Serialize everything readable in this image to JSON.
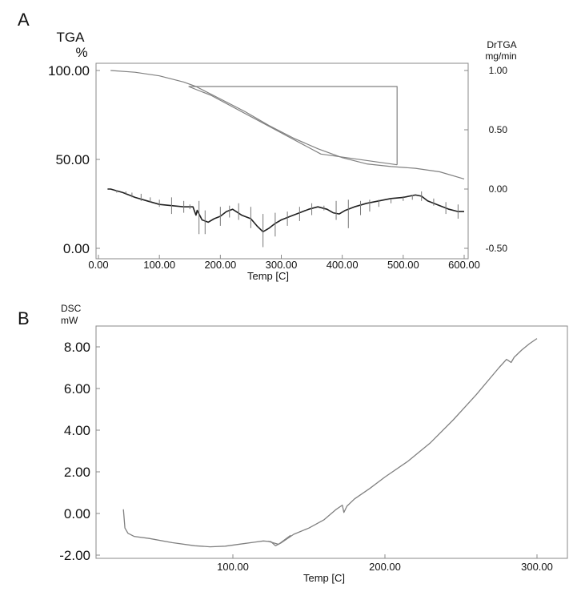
{
  "panels": [
    {
      "letter": "A"
    },
    {
      "letter": "B"
    }
  ],
  "chart_data": [
    {
      "type": "line",
      "title": "",
      "xlabel": "Temp  [C]",
      "ylabel_left": "TGA\n%",
      "ylabel_left_lines": [
        "TGA",
        "%"
      ],
      "ylabel_right_lines": [
        "DrTGA",
        "mg/min"
      ],
      "xlim": [
        0,
        600
      ],
      "ylim_left": [
        0,
        100
      ],
      "ylim_right": [
        -0.5,
        1.0
      ],
      "x_ticks": [
        "0.00",
        "100.00",
        "200.00",
        "300.00",
        "400.00",
        "500.00",
        "600.00"
      ],
      "x_tick_values": [
        0,
        100,
        200,
        300,
        400,
        500,
        600
      ],
      "y_ticks_left": [
        "100.00",
        "50.00",
        "0.00"
      ],
      "y_tick_values_left": [
        100,
        50,
        0
      ],
      "y_ticks_right": [
        "1.00",
        "0.50",
        "0.00",
        "-0.50"
      ],
      "y_tick_values_right": [
        1.0,
        0.5,
        0.0,
        -0.5
      ],
      "series": [
        {
          "axis": "left",
          "color": "#808080",
          "x": [
            20,
            60,
            100,
            140,
            160,
            200,
            240,
            280,
            320,
            360,
            400,
            440,
            480,
            520,
            560,
            600
          ],
          "y": [
            100,
            99,
            97,
            93.5,
            91,
            84,
            77,
            69,
            62,
            56,
            51,
            47.5,
            46,
            45,
            43,
            39
          ]
        },
        {
          "axis": "left",
          "color": "#808080",
          "x": [
            148,
            185,
            365,
            490
          ],
          "y": [
            91,
            86,
            53,
            47
          ]
        },
        {
          "axis": "left",
          "color": "#808080",
          "x": [
            148,
            490,
            490
          ],
          "y": [
            91,
            91,
            47
          ]
        },
        {
          "axis": "right",
          "color": "#202020",
          "x": [
            15,
            20,
            40,
            60,
            80,
            100,
            120,
            140,
            155,
            160,
            162,
            170,
            180,
            190,
            200,
            210,
            220,
            235,
            250,
            260,
            270,
            280,
            290,
            300,
            315,
            330,
            345,
            360,
            375,
            385,
            395,
            405,
            420,
            440,
            460,
            480,
            500,
            520,
            530,
            540,
            555,
            575,
            590,
            600
          ],
          "y": [
            0.0,
            0.0,
            -0.03,
            -0.07,
            -0.1,
            -0.13,
            -0.14,
            -0.15,
            -0.15,
            -0.22,
            -0.18,
            -0.26,
            -0.28,
            -0.25,
            -0.23,
            -0.19,
            -0.17,
            -0.22,
            -0.25,
            -0.31,
            -0.36,
            -0.33,
            -0.29,
            -0.26,
            -0.23,
            -0.2,
            -0.17,
            -0.15,
            -0.17,
            -0.2,
            -0.21,
            -0.18,
            -0.15,
            -0.12,
            -0.1,
            -0.08,
            -0.07,
            -0.05,
            -0.06,
            -0.1,
            -0.13,
            -0.17,
            -0.19,
            -0.19
          ]
        }
      ],
      "markers": {
        "axis": "right",
        "x": [
          30,
          45,
          55,
          70,
          85,
          100,
          120,
          140,
          150,
          165,
          175,
          200,
          215,
          230,
          250,
          270,
          290,
          310,
          330,
          350,
          370,
          390,
          410,
          430,
          445,
          460,
          480,
          500,
          515,
          530,
          550,
          570,
          590
        ],
        "y": [
          -0.02,
          -0.03,
          -0.05,
          -0.07,
          -0.09,
          -0.12,
          -0.14,
          -0.15,
          -0.15,
          -0.24,
          -0.28,
          -0.23,
          -0.19,
          -0.19,
          -0.24,
          -0.35,
          -0.3,
          -0.25,
          -0.21,
          -0.17,
          -0.16,
          -0.18,
          -0.21,
          -0.16,
          -0.14,
          -0.12,
          -0.1,
          -0.08,
          -0.07,
          -0.06,
          -0.11,
          -0.16,
          -0.19
        ],
        "h": [
          0.01,
          0.01,
          0.02,
          0.03,
          0.02,
          0.03,
          0.07,
          0.05,
          0.02,
          0.14,
          0.1,
          0.08,
          0.05,
          0.07,
          0.09,
          0.14,
          0.1,
          0.06,
          0.06,
          0.05,
          0.02,
          0.08,
          0.12,
          0.06,
          0.05,
          0.03,
          0.02,
          0.02,
          0.02,
          0.04,
          0.03,
          0.05,
          0.06
        ]
      }
    },
    {
      "type": "line",
      "title": "",
      "xlabel": "Temp  [C]",
      "ylabel_lines": [
        "DSC",
        "mW"
      ],
      "xlim": [
        10,
        320
      ],
      "ylim": [
        -2.2,
        8.8
      ],
      "x_ticks": [
        "100.00",
        "200.00",
        "300.00"
      ],
      "x_tick_values": [
        100,
        200,
        300
      ],
      "y_ticks": [
        "8.00",
        "6.00",
        "4.00",
        "2.00",
        "0.00",
        "-2.00"
      ],
      "y_tick_values": [
        8,
        6,
        4,
        2,
        0,
        -2
      ],
      "series": [
        {
          "color": "#808080",
          "x": [
            28,
            29,
            31,
            35,
            45,
            60,
            75,
            85,
            95,
            105,
            115,
            120,
            125,
            128,
            132,
            140,
            150,
            160,
            168,
            172,
            173,
            175,
            180,
            190,
            200,
            215,
            230,
            245,
            260,
            275,
            280,
            283,
            285,
            290,
            295,
            300
          ],
          "y": [
            0.2,
            -0.7,
            -0.95,
            -1.1,
            -1.2,
            -1.4,
            -1.55,
            -1.6,
            -1.57,
            -1.47,
            -1.37,
            -1.32,
            -1.35,
            -1.55,
            -1.4,
            -1.0,
            -0.7,
            -0.3,
            0.2,
            0.4,
            0.05,
            0.35,
            0.7,
            1.2,
            1.75,
            2.5,
            3.4,
            4.5,
            5.7,
            7.0,
            7.4,
            7.25,
            7.5,
            7.85,
            8.15,
            8.4
          ]
        },
        {
          "color": "#808080",
          "x": [
            123,
            130,
            138
          ],
          "y": [
            -1.33,
            -1.48,
            -1.05
          ]
        }
      ]
    }
  ]
}
